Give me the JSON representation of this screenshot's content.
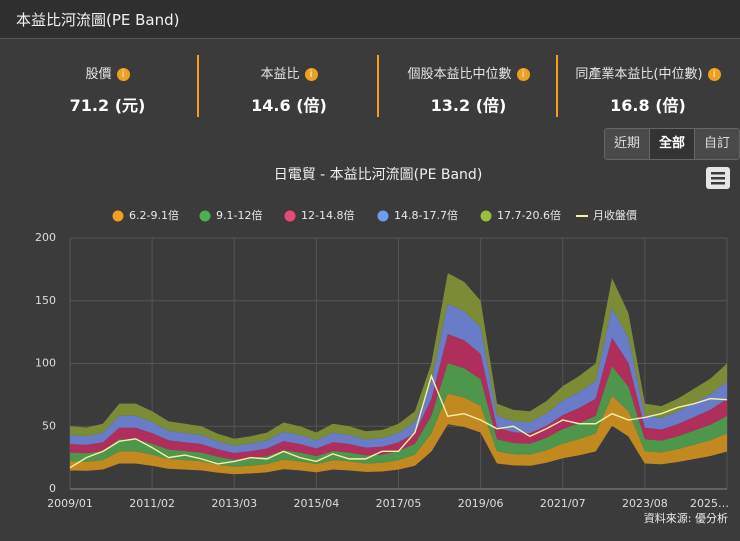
{
  "header": {
    "title": "本益比河流圖(PE Band)"
  },
  "stats": [
    {
      "label": "股價",
      "value": "71.2 (元)"
    },
    {
      "label": "本益比",
      "value": "14.6 (倍)"
    },
    {
      "label": "個股本益比中位數",
      "value": "13.2 (倍)"
    },
    {
      "label": "同產業本益比(中位數)",
      "value": "16.8 (倍)"
    }
  ],
  "range_buttons": [
    "近期",
    "全部",
    "自訂"
  ],
  "source": "資料來源: 優分析",
  "chart_data": {
    "type": "area",
    "title": "日電貿 - 本益比河流圖(PE Band)",
    "x": [
      "2009/01",
      "2009/06",
      "2009/11",
      "2010/04",
      "2010/09",
      "2011/02",
      "2011/07",
      "2011/12",
      "2012/05",
      "2012/10",
      "2013/03",
      "2013/08",
      "2014/01",
      "2014/06",
      "2014/11",
      "2015/04",
      "2015/09",
      "2016/02",
      "2016/07",
      "2016/12",
      "2017/05",
      "2017/10",
      "2018/03",
      "2018/08",
      "2019/01",
      "2019/06",
      "2019/11",
      "2020/04",
      "2020/09",
      "2021/02",
      "2021/07",
      "2021/12",
      "2022/05",
      "2022/10",
      "2023/03",
      "2023/08",
      "2024/01",
      "2024/06",
      "2024/11",
      "2025/04",
      "2025/09"
    ],
    "xticks": [
      "2009/01",
      "2011/02",
      "2013/03",
      "2015/04",
      "2017/05",
      "2019/06",
      "2021/07",
      "2023/08",
      {
        "value": "2025/09",
        "label": "2025…"
      }
    ],
    "ylim": [
      0,
      200
    ],
    "yticks": [
      0,
      50,
      100,
      150,
      200
    ],
    "grid": true,
    "series": [
      {
        "name": "6.2-9.1倍",
        "color": "#f0a020",
        "fill": "#c98d1f",
        "low": [
          15.0,
          14.7,
          15.7,
          20.5,
          20.5,
          18.7,
          16.3,
          15.7,
          15.0,
          13.2,
          12.0,
          12.6,
          13.5,
          16.0,
          15.0,
          13.5,
          15.7,
          15.0,
          13.8,
          14.1,
          15.7,
          18.7,
          30.1,
          51.8,
          49.7,
          45.2,
          20.5,
          19.0,
          18.7,
          21.1,
          24.7,
          27.1,
          30.1,
          50.6,
          42.1,
          20.5,
          19.9,
          21.7,
          24.1,
          26.5,
          30.1
        ],
        "values": [
          22.1,
          21.7,
          23.0,
          30.0,
          30.0,
          27.4,
          23.9,
          23.0,
          22.1,
          19.4,
          17.7,
          18.6,
          19.9,
          23.4,
          22.1,
          19.9,
          23.0,
          22.1,
          20.3,
          20.8,
          23.0,
          27.4,
          44.2,
          76.0,
          72.9,
          66.3,
          30.0,
          27.8,
          27.4,
          30.9,
          36.2,
          39.8,
          44.2,
          74.3,
          61.9,
          30.0,
          29.2,
          31.8,
          35.4,
          38.9,
          44.2
        ]
      },
      {
        "name": "9.1-12倍",
        "color": "#4caf50",
        "fill": "#4f9b4c",
        "values": [
          29.1,
          28.6,
          30.3,
          39.6,
          39.6,
          36.1,
          31.5,
          30.3,
          29.1,
          25.7,
          23.3,
          24.5,
          26.2,
          30.9,
          29.1,
          26.2,
          30.3,
          29.1,
          26.8,
          27.4,
          30.3,
          36.1,
          58.3,
          100.3,
          96.2,
          87.5,
          39.6,
          36.7,
          36.1,
          40.8,
          47.8,
          52.5,
          58.3,
          97.9,
          81.6,
          39.6,
          38.5,
          42.0,
          46.6,
          51.3,
          58.3
        ]
      },
      {
        "name": "12-14.8倍",
        "color": "#e84a7a",
        "fill": "#b52d5e",
        "values": [
          35.9,
          35.2,
          37.3,
          48.8,
          48.8,
          44.5,
          38.8,
          37.3,
          35.9,
          31.6,
          28.7,
          30.2,
          32.3,
          38.1,
          35.9,
          32.3,
          37.3,
          35.9,
          33.0,
          33.7,
          37.3,
          44.5,
          71.8,
          123.5,
          118.5,
          107.7,
          48.8,
          45.2,
          44.5,
          50.3,
          58.9,
          64.6,
          71.8,
          120.6,
          100.5,
          48.8,
          47.4,
          51.7,
          57.4,
          63.2,
          71.8
        ]
      },
      {
        "name": "14.8-17.7倍",
        "color": "#6d9eeb",
        "fill": "#6a7fcf",
        "values": [
          42.9,
          42.1,
          44.7,
          58.4,
          58.4,
          53.3,
          46.4,
          44.7,
          42.9,
          37.8,
          34.4,
          36.1,
          38.7,
          45.5,
          42.9,
          38.7,
          44.7,
          42.9,
          39.5,
          40.4,
          44.7,
          53.3,
          85.9,
          147.7,
          141.7,
          128.9,
          58.4,
          54.1,
          53.3,
          60.1,
          70.4,
          77.3,
          85.9,
          144.3,
          120.3,
          58.4,
          56.7,
          61.8,
          68.7,
          75.6,
          85.9
        ]
      },
      {
        "name": "17.7-20.6倍",
        "color": "#9cbf3b",
        "fill": "#7f8f35",
        "values": [
          50,
          49,
          52,
          68,
          68,
          62,
          54,
          52,
          50,
          44,
          40,
          42,
          45,
          53,
          50,
          45,
          52,
          50,
          46,
          47,
          52,
          62,
          100,
          172,
          165,
          150,
          68,
          63,
          62,
          70,
          82,
          90,
          100,
          168,
          140,
          68,
          66,
          72,
          80,
          88,
          100
        ]
      },
      {
        "name": "月收盤價",
        "type": "line",
        "color": "#f4f1a6",
        "values": [
          17,
          25,
          30,
          38,
          40,
          33,
          25,
          27,
          24,
          20,
          22,
          25,
          24,
          30,
          25,
          22,
          28,
          24,
          24,
          30,
          30,
          45,
          90,
          58,
          60,
          55,
          48,
          50,
          42,
          48,
          55,
          52,
          52,
          60,
          55,
          57,
          60,
          65,
          68,
          72,
          71.2
        ]
      }
    ]
  }
}
